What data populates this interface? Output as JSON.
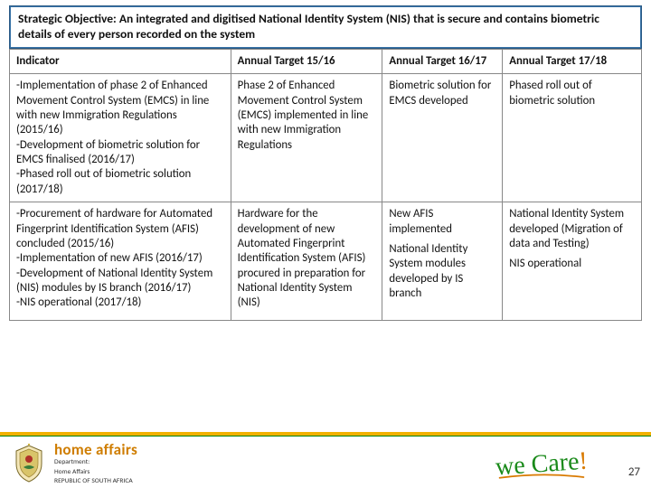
{
  "objective": "Strategic Objective: An integrated and digitised National Identity System (NIS) that is secure and contains biometric details of every person recorded on the system",
  "headers": {
    "indicator": "Indicator",
    "t1": "Annual Target 15/16",
    "t2": "Annual Target 16/17",
    "t3": "Annual Target 17/18"
  },
  "rows": [
    {
      "indicator": "-Implementation of phase 2 of Enhanced Movement Control System (EMCS) in line with new Immigration Regulations (2015/16)\n-Development of biometric solution for EMCS finalised (2016/17)\n-Phased roll out of biometric solution (2017/18)",
      "t1": "Phase 2 of Enhanced Movement Control System (EMCS) implemented in line with new Immigration Regulations",
      "t2": "Biometric solution for EMCS developed",
      "t3": "Phased roll out of biometric solution"
    },
    {
      "indicator": "-Procurement of hardware for Automated Fingerprint Identification System (AFIS) concluded (2015/16)\n-Implementation of new AFIS (2016/17)\n-Development of National Identity System (NIS) modules by IS branch (2016/17)\n-NIS operational (2017/18)",
      "t1": "Hardware for the development of new Automated Fingerprint Identification System (AFIS) procured in preparation for National Identity System (NIS)",
      "t2a": "New AFIS implemented",
      "t2b": "National Identity System modules developed by IS branch",
      "t3a": "National Identity System developed (Migration of data and Testing)",
      "t3b": "NIS operational"
    }
  ],
  "footer": {
    "brand": "home affairs",
    "dept_line1": "Department:",
    "dept_line2": "Home Affairs",
    "dept_line3": "REPUBLIC OF SOUTH AFRICA",
    "wecare": "we Care",
    "page": "27"
  },
  "colors": {
    "header_bar": "#3873a8",
    "accent_gold": "#f2b100",
    "accent_green": "#008000",
    "brand_orange": "#cf7d00",
    "wecare_green": "#1a8a1a"
  }
}
